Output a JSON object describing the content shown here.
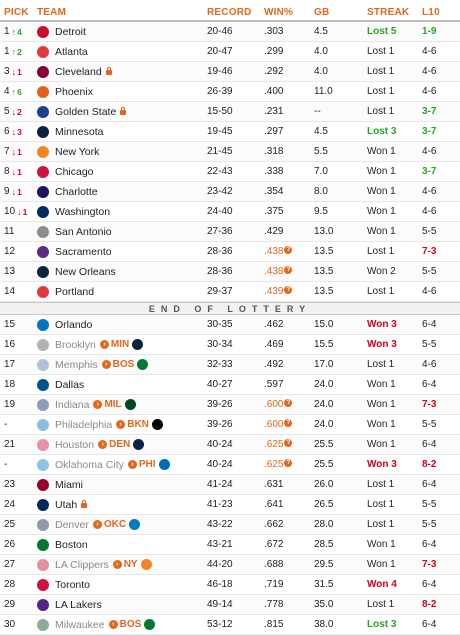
{
  "header": {
    "pick": "PICK",
    "team": "TEAM",
    "record": "RECORD",
    "winpct": "WIN%",
    "gb": "GB",
    "streak": "STREAK",
    "l10": "L10"
  },
  "divider_text": "END OF LOTTERY",
  "rows_top": [
    {
      "pick": "1",
      "move": "4",
      "dir": "up",
      "team": "Detroit",
      "logo": "#c8102e",
      "record": "20-46",
      "win": ".303",
      "gb": "4.5",
      "streak": "Lost 5",
      "streak_style": "green",
      "l10": "1-9",
      "l10_style": "green"
    },
    {
      "pick": "1",
      "move": "2",
      "dir": "up",
      "team": "Atlanta",
      "logo": "#e03a3e",
      "record": "20-47",
      "win": ".299",
      "gb": "4.0",
      "streak": "Lost 1",
      "l10": "4-6"
    },
    {
      "pick": "3",
      "move": "1",
      "dir": "down",
      "team": "Cleveland",
      "logo": "#860038",
      "lock": true,
      "record": "19-46",
      "win": ".292",
      "gb": "4.0",
      "streak": "Lost 1",
      "l10": "4-6"
    },
    {
      "pick": "4",
      "move": "6",
      "dir": "up",
      "team": "Phoenix",
      "logo": "#e56020",
      "record": "26-39",
      "win": ".400",
      "gb": "11.0",
      "streak": "Lost 1",
      "l10": "4-6"
    },
    {
      "pick": "5",
      "move": "2",
      "dir": "down",
      "team": "Golden State",
      "logo": "#1d428a",
      "lock": true,
      "record": "15-50",
      "win": ".231",
      "gb": "--",
      "streak": "Lost 1",
      "l10": "3-7",
      "l10_style": "green"
    },
    {
      "pick": "6",
      "move": "3",
      "dir": "down",
      "team": "Minnesota",
      "logo": "#0c2340",
      "record": "19-45",
      "win": ".297",
      "gb": "4.5",
      "streak": "Lost 3",
      "streak_style": "green",
      "l10": "3-7",
      "l10_style": "green"
    },
    {
      "pick": "7",
      "move": "1",
      "dir": "down",
      "team": "New York",
      "logo": "#f58426",
      "record": "21-45",
      "win": ".318",
      "gb": "5.5",
      "streak": "Won 1",
      "l10": "4-6"
    },
    {
      "pick": "8",
      "move": "1",
      "dir": "down",
      "team": "Chicago",
      "logo": "#ce1141",
      "record": "22-43",
      "win": ".338",
      "gb": "7.0",
      "streak": "Won 1",
      "l10": "3-7",
      "l10_style": "green"
    },
    {
      "pick": "9",
      "move": "1",
      "dir": "down",
      "team": "Charlotte",
      "logo": "#1d1160",
      "record": "23-42",
      "win": ".354",
      "gb": "8.0",
      "streak": "Won 1",
      "l10": "4-6"
    },
    {
      "pick": "10",
      "move": "1",
      "dir": "down",
      "team": "Washington",
      "logo": "#002b5c",
      "record": "24-40",
      "win": ".375",
      "gb": "9.5",
      "streak": "Won 1",
      "l10": "4-6"
    },
    {
      "pick": "11",
      "team": "San Antonio",
      "logo": "#8a8d8f",
      "record": "27-36",
      "win": ".429",
      "gb": "13.0",
      "streak": "Won 1",
      "l10": "5-5"
    },
    {
      "pick": "12",
      "team": "Sacramento",
      "logo": "#5a2d81",
      "record": "28-36",
      "win": ".438",
      "win_orange": true,
      "gb": "13.5",
      "streak": "Lost 1",
      "l10": "7-3",
      "l10_style": "red"
    },
    {
      "pick": "13",
      "team": "New Orleans",
      "logo": "#0c2340",
      "record": "28-36",
      "win": ".438",
      "win_orange": true,
      "gb": "13.5",
      "streak": "Won 2",
      "l10": "5-5"
    },
    {
      "pick": "14",
      "team": "Portland",
      "logo": "#e03a3e",
      "record": "29-37",
      "win": ".439",
      "win_orange": true,
      "gb": "13.5",
      "streak": "Lost 1",
      "l10": "4-6"
    }
  ],
  "rows_bottom": [
    {
      "pick": "15",
      "team": "Orlando",
      "logo": "#0077c0",
      "record": "30-35",
      "win": ".462",
      "gb": "15.0",
      "streak": "Won 3",
      "streak_style": "red",
      "l10": "6-4"
    },
    {
      "pick": "16",
      "team": "Brooklyn",
      "faded": true,
      "logo": "#555555",
      "trade": "MIN",
      "trade_logo": "#0c2340",
      "record": "30-34",
      "win": ".469",
      "gb": "15.5",
      "streak": "Won 3",
      "streak_style": "red",
      "l10": "5-5"
    },
    {
      "pick": "17",
      "team": "Memphis",
      "faded": true,
      "logo": "#5d76a9",
      "trade": "BOS",
      "trade_logo": "#007a33",
      "record": "32-33",
      "win": ".492",
      "gb": "17.0",
      "streak": "Lost 1",
      "l10": "4-6"
    },
    {
      "pick": "18",
      "team": "Dallas",
      "logo": "#00538c",
      "record": "40-27",
      "win": ".597",
      "gb": "24.0",
      "streak": "Won 1",
      "l10": "6-4"
    },
    {
      "pick": "19",
      "team": "Indiana",
      "faded": true,
      "logo": "#002d62",
      "trade": "MIL",
      "trade_logo": "#00471b",
      "record": "39-26",
      "win": ".600",
      "win_orange": true,
      "gb": "24.0",
      "streak": "Won 1",
      "l10": "7-3",
      "l10_style": "red"
    },
    {
      "pick": "-",
      "team": "Philadelphia",
      "faded": true,
      "logo": "#006bb6",
      "trade": "BKN",
      "trade_logo": "#000000",
      "record": "39-26",
      "win": ".600",
      "win_orange": true,
      "gb": "24.0",
      "streak": "Won 1",
      "l10": "5-5"
    },
    {
      "pick": "21",
      "team": "Houston",
      "faded": true,
      "logo": "#ce1141",
      "trade": "DEN",
      "trade_logo": "#0e2240",
      "record": "40-24",
      "win": ".625",
      "win_orange": true,
      "gb": "25.5",
      "streak": "Won 1",
      "l10": "6-4"
    },
    {
      "pick": "-",
      "team": "Oklahoma City",
      "faded": true,
      "logo": "#007ac1",
      "trade": "PHI",
      "trade_logo": "#006bb6",
      "record": "40-24",
      "win": ".625",
      "win_orange": true,
      "gb": "25.5",
      "streak": "Won 3",
      "streak_style": "red",
      "l10": "8-2",
      "l10_style": "red"
    },
    {
      "pick": "23",
      "team": "Miami",
      "logo": "#98002e",
      "record": "41-24",
      "win": ".631",
      "gb": "26.0",
      "streak": "Lost 1",
      "l10": "6-4"
    },
    {
      "pick": "24",
      "team": "Utah",
      "logo": "#002b5c",
      "lock": true,
      "record": "41-23",
      "win": ".641",
      "gb": "26.5",
      "streak": "Lost 1",
      "l10": "5-5"
    },
    {
      "pick": "25",
      "team": "Denver",
      "faded": true,
      "logo": "#0e2240",
      "trade": "OKC",
      "trade_logo": "#007ac1",
      "record": "43-22",
      "win": ".662",
      "gb": "28.0",
      "streak": "Lost 1",
      "l10": "5-5"
    },
    {
      "pick": "26",
      "team": "Boston",
      "logo": "#007a33",
      "record": "43-21",
      "win": ".672",
      "gb": "28.5",
      "streak": "Won 1",
      "l10": "6-4"
    },
    {
      "pick": "27",
      "team": "LA Clippers",
      "faded": true,
      "logo": "#c8102e",
      "trade": "NY",
      "trade_logo": "#f58426",
      "record": "44-20",
      "win": ".688",
      "gb": "29.5",
      "streak": "Won 1",
      "l10": "7-3",
      "l10_style": "red"
    },
    {
      "pick": "28",
      "team": "Toronto",
      "logo": "#ce1141",
      "record": "46-18",
      "win": ".719",
      "gb": "31.5",
      "streak": "Won 4",
      "streak_style": "red",
      "l10": "6-4"
    },
    {
      "pick": "29",
      "team": "LA Lakers",
      "logo": "#552583",
      "record": "49-14",
      "win": ".778",
      "gb": "35.0",
      "streak": "Lost 1",
      "l10": "8-2",
      "l10_style": "red"
    },
    {
      "pick": "30",
      "team": "Milwaukee",
      "faded": true,
      "logo": "#00471b",
      "trade": "BOS",
      "trade_logo": "#007a33",
      "record": "53-12",
      "win": ".815",
      "gb": "38.0",
      "streak": "Lost 3",
      "streak_style": "green",
      "l10": "6-4"
    }
  ]
}
